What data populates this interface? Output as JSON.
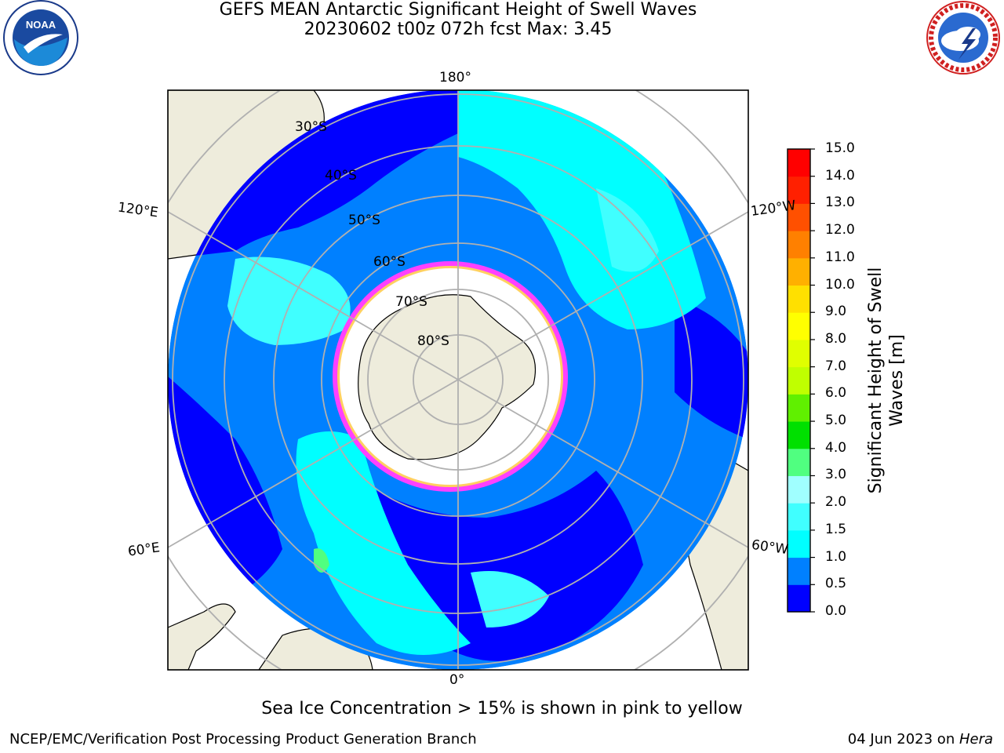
{
  "header": {
    "title_line1": "GEFS MEAN Antarctic Significant Height of Swell Waves",
    "title_line2": "20230602 t00z 072h fcst   Max: 3.45"
  },
  "logos": {
    "left": {
      "icon": "noaa-logo-icon",
      "text": "NOAA"
    },
    "right": {
      "icon": "nws-logo-icon"
    }
  },
  "map": {
    "projection": "south-polar-stereographic",
    "longitude_labels": {
      "top": "180°",
      "bottom": "0°",
      "upper_left": "120°E",
      "upper_right": "120°W",
      "lower_left": "60°E",
      "lower_right": "60°W"
    },
    "latitude_labels": [
      "30°S",
      "40°S",
      "50°S",
      "60°S",
      "70°S",
      "80°S"
    ],
    "colors": {
      "land": "#eeecdc",
      "ocean_low": "#0000ff",
      "ocean_mid": "#0080ff",
      "ocean_high": "#00ffff",
      "ocean_higher": "#40ffff",
      "ice_edge": "#ff40ff",
      "ice_inner": "#ffd060",
      "grid": "#b0b0b0"
    }
  },
  "colorbar": {
    "title_line1": "Significant Height of Swell",
    "title_line2": "Waves [m]",
    "ticks": [
      "0.0",
      "0.5",
      "1.0",
      "1.5",
      "2.0",
      "3.0",
      "4.0",
      "5.0",
      "6.0",
      "7.0",
      "8.0",
      "9.0",
      "10.0",
      "11.0",
      "12.0",
      "13.0",
      "14.0",
      "15.0"
    ],
    "colors": [
      "#0000ff",
      "#0080ff",
      "#00ffff",
      "#40ffff",
      "#a0ffff",
      "#50ff80",
      "#00e000",
      "#60f000",
      "#c0ff00",
      "#e0ff00",
      "#ffff00",
      "#ffe000",
      "#ffb000",
      "#ff8000",
      "#ff5000",
      "#ff2000",
      "#ff0000"
    ]
  },
  "footer": {
    "note": "Sea Ice Concentration > 15% is shown in pink to yellow",
    "credit": "NCEP/EMC/Verification Post Processing Product Generation Branch",
    "date": "04 Jun 2023 on ",
    "machine": "Hera"
  }
}
